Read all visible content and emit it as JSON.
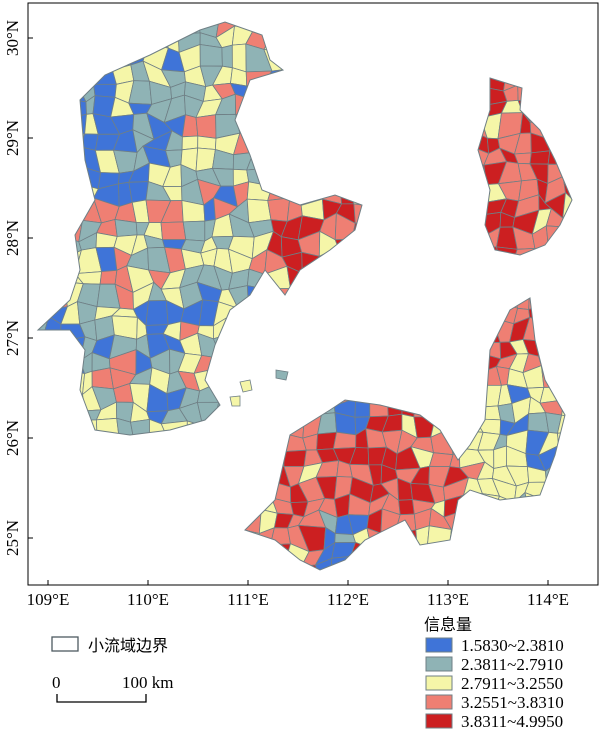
{
  "map": {
    "x_ticks": [
      "109°E",
      "110°E",
      "111°E",
      "112°E",
      "113°E",
      "114°E"
    ],
    "y_ticks": [
      "30°N",
      "29°N",
      "28°N",
      "27°N",
      "26°N",
      "25°N"
    ]
  },
  "boundary_legend": {
    "label": "小流域边界"
  },
  "scale_bar": {
    "start_label": "0",
    "end_label": "100 km"
  },
  "legend": {
    "title": "信息量",
    "classes": [
      {
        "range": "1.5830~2.3810",
        "color": "#3f74d8"
      },
      {
        "range": "2.3811~2.7910",
        "color": "#8fb3b5"
      },
      {
        "range": "2.7911~3.2550",
        "color": "#f5f6a8"
      },
      {
        "range": "3.2551~3.8310",
        "color": "#ef7f73"
      },
      {
        "range": "3.8311~4.9950",
        "color": "#cc1f21"
      }
    ]
  }
}
